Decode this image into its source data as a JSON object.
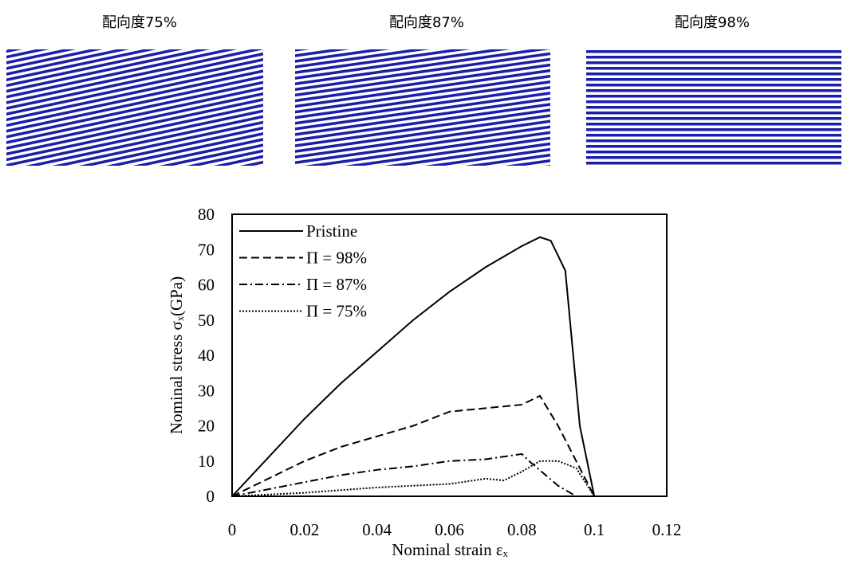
{
  "panels": [
    {
      "title": "配向度75%"
    },
    {
      "title": "配向度87%"
    },
    {
      "title": "配向度98%"
    }
  ],
  "chart_data": {
    "type": "line",
    "x_label": "Nominal strain εₓ",
    "y_label": "Nominal stress σₓ(GPa)",
    "xlim": [
      0,
      0.12
    ],
    "xticks": [
      0,
      0.02,
      0.04,
      0.06,
      0.08,
      0.1,
      0.12
    ],
    "ylim": [
      0,
      80
    ],
    "yticks": [
      0,
      10,
      20,
      30,
      40,
      50,
      60,
      70,
      80
    ],
    "legend": "upper-left",
    "series": [
      {
        "name": "Pristine",
        "color": "#000000",
        "style": "solid",
        "x": [
          0,
          0.01,
          0.02,
          0.03,
          0.04,
          0.05,
          0.06,
          0.07,
          0.08,
          0.085,
          0.088,
          0.092,
          0.096,
          0.1,
          0.105
        ],
        "values": [
          0,
          11,
          22,
          32,
          41,
          50,
          58,
          65,
          71,
          73.5,
          72.5,
          64,
          20,
          0,
          0
        ]
      },
      {
        "name": "Π = 98%",
        "color": "#000000",
        "style": "dashed",
        "x": [
          0,
          0.01,
          0.02,
          0.03,
          0.04,
          0.05,
          0.06,
          0.07,
          0.08,
          0.085,
          0.09,
          0.092,
          0.1
        ],
        "values": [
          0,
          5,
          10,
          14,
          17,
          20,
          24,
          25,
          26,
          28.5,
          20,
          16,
          0
        ]
      },
      {
        "name": "Π = 87%",
        "color": "#000000",
        "style": "dashdot",
        "x": [
          0,
          0.02,
          0.03,
          0.04,
          0.05,
          0.06,
          0.07,
          0.08,
          0.082,
          0.09,
          0.095
        ],
        "values": [
          0,
          4,
          6,
          7.5,
          8.5,
          10,
          10.5,
          12,
          10,
          3,
          0
        ]
      },
      {
        "name": "Π = 75%",
        "color": "#000000",
        "style": "dotted",
        "x": [
          0,
          0.02,
          0.04,
          0.06,
          0.07,
          0.075,
          0.08,
          0.085,
          0.09,
          0.095,
          0.1
        ],
        "values": [
          0,
          1,
          2.5,
          3.5,
          5,
          4.5,
          7,
          10,
          10,
          8,
          0
        ]
      }
    ]
  }
}
